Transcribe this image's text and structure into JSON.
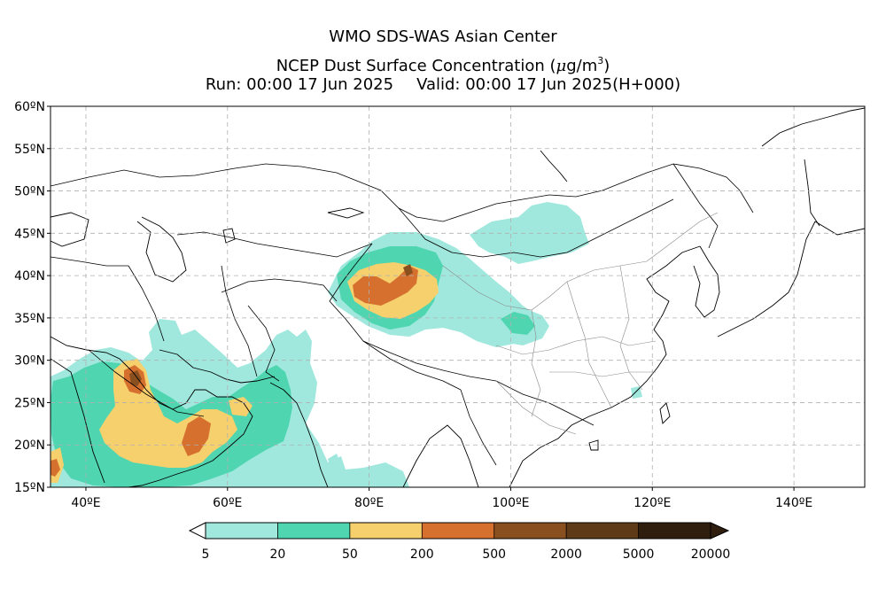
{
  "header": {
    "title_line1": "WMO SDS-WAS Asian Center",
    "title_line2_text": "NCEP Dust Surface Concentration (",
    "title_line2_unit_mu": "μ",
    "title_line2_unit_rest": "g/m",
    "title_line2_unit_exp": "3",
    "title_line2_close": ")",
    "run_label": "Run: 00:00 17 Jun 2025",
    "valid_label": "Valid: 00:00 17 Jun 2025(H+000)"
  },
  "map": {
    "extent": {
      "lon_min": 35,
      "lon_max": 150,
      "lat_min": 15,
      "lat_max": 60
    },
    "lat_ticks": [
      {
        "value": 60,
        "label": "60ºN"
      },
      {
        "value": 55,
        "label": "55ºN"
      },
      {
        "value": 50,
        "label": "50ºN"
      },
      {
        "value": 45,
        "label": "45ºN"
      },
      {
        "value": 40,
        "label": "40ºN"
      },
      {
        "value": 35,
        "label": "35ºN"
      },
      {
        "value": 30,
        "label": "30ºN"
      },
      {
        "value": 25,
        "label": "25ºN"
      },
      {
        "value": 20,
        "label": "20ºN"
      },
      {
        "value": 15,
        "label": "15ºN"
      }
    ],
    "lon_ticks": [
      {
        "value": 40,
        "label": "40ºE"
      },
      {
        "value": 60,
        "label": "60ºE"
      },
      {
        "value": 80,
        "label": "80ºE"
      },
      {
        "value": 100,
        "label": "100ºE"
      },
      {
        "value": 120,
        "label": "120ºE"
      },
      {
        "value": 140,
        "label": "140ºE"
      }
    ],
    "gridline_style": "dashed gray",
    "colors": {
      "c1": "#a0e8de",
      "c2": "#4fd6b0",
      "c3": "#f7d06e",
      "c4": "#d6702e",
      "c5": "#8a4f1e",
      "c6": "#5e3a18",
      "c7": "#2f1d0e"
    }
  },
  "colorbar": {
    "labels": [
      "5",
      "20",
      "50",
      "200",
      "500",
      "2000",
      "5000",
      "20000"
    ],
    "colors": [
      "#a0e8de",
      "#4fd6b0",
      "#f7d06e",
      "#d6702e",
      "#8a4f1e",
      "#5e3a18",
      "#2f1d0e"
    ]
  }
}
